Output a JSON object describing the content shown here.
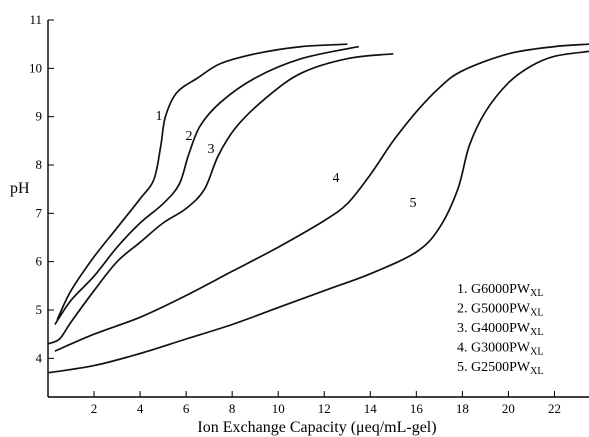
{
  "chart_data": {
    "type": "line",
    "title": "",
    "xlabel": "Ion Exchange Capacity (μeq/mL-gel)",
    "ylabel": "pH",
    "xlim": [
      0,
      23.5
    ],
    "ylim": [
      3.2,
      11
    ],
    "xticks": [
      2,
      4,
      6,
      8,
      10,
      12,
      14,
      16,
      18,
      20,
      22
    ],
    "yticks": [
      4,
      5,
      6,
      7,
      8,
      9,
      10,
      11
    ],
    "grid": false,
    "legend_position": "bottom-right",
    "series": [
      {
        "label": "1",
        "legend_base": "1. G6000PW",
        "legend_sub": "XL",
        "points": [
          [
            0.4,
            4.8
          ],
          [
            1,
            5.4
          ],
          [
            2,
            6.1
          ],
          [
            3,
            6.7
          ],
          [
            4,
            7.3
          ],
          [
            4.6,
            7.7
          ],
          [
            4.9,
            8.4
          ],
          [
            5.1,
            9.0
          ],
          [
            5.6,
            9.5
          ],
          [
            6.5,
            9.8
          ],
          [
            7.5,
            10.1
          ],
          [
            9,
            10.3
          ],
          [
            11,
            10.45
          ],
          [
            13,
            10.5
          ]
        ]
      },
      {
        "label": "2",
        "legend_base": "2. G5000PW",
        "legend_sub": "XL",
        "points": [
          [
            0.3,
            4.7
          ],
          [
            1,
            5.2
          ],
          [
            2,
            5.7
          ],
          [
            3,
            6.3
          ],
          [
            4,
            6.8
          ],
          [
            5,
            7.2
          ],
          [
            5.7,
            7.6
          ],
          [
            6.1,
            8.2
          ],
          [
            6.6,
            8.8
          ],
          [
            7.5,
            9.3
          ],
          [
            9,
            9.8
          ],
          [
            11,
            10.2
          ],
          [
            13.5,
            10.45
          ]
        ]
      },
      {
        "label": "3",
        "legend_base": "3. G4000PW",
        "legend_sub": "XL",
        "points": [
          [
            0,
            4.3
          ],
          [
            0.5,
            4.4
          ],
          [
            1,
            4.75
          ],
          [
            2,
            5.4
          ],
          [
            3,
            6.0
          ],
          [
            4,
            6.4
          ],
          [
            5,
            6.8
          ],
          [
            6,
            7.1
          ],
          [
            6.8,
            7.5
          ],
          [
            7.4,
            8.2
          ],
          [
            8.2,
            8.8
          ],
          [
            9.5,
            9.4
          ],
          [
            11,
            9.9
          ],
          [
            13,
            10.2
          ],
          [
            15,
            10.3
          ]
        ]
      },
      {
        "label": "4",
        "legend_base": "4. G3000PW",
        "legend_sub": "XL",
        "points": [
          [
            0.3,
            4.15
          ],
          [
            2,
            4.5
          ],
          [
            4,
            4.85
          ],
          [
            6,
            5.3
          ],
          [
            8,
            5.8
          ],
          [
            10,
            6.3
          ],
          [
            12,
            6.85
          ],
          [
            13,
            7.2
          ],
          [
            14,
            7.8
          ],
          [
            15,
            8.5
          ],
          [
            16,
            9.1
          ],
          [
            17,
            9.6
          ],
          [
            18,
            9.95
          ],
          [
            20,
            10.3
          ],
          [
            22,
            10.45
          ],
          [
            23.5,
            10.5
          ]
        ]
      },
      {
        "label": "5",
        "legend_base": "5. G2500PW",
        "legend_sub": "XL",
        "points": [
          [
            0,
            3.7
          ],
          [
            2,
            3.85
          ],
          [
            4,
            4.1
          ],
          [
            6,
            4.4
          ],
          [
            8,
            4.7
          ],
          [
            10,
            5.05
          ],
          [
            12,
            5.4
          ],
          [
            14,
            5.75
          ],
          [
            16,
            6.2
          ],
          [
            17,
            6.7
          ],
          [
            17.8,
            7.5
          ],
          [
            18.3,
            8.4
          ],
          [
            19,
            9.1
          ],
          [
            20,
            9.7
          ],
          [
            21,
            10.05
          ],
          [
            22,
            10.25
          ],
          [
            23.5,
            10.35
          ]
        ]
      }
    ]
  }
}
